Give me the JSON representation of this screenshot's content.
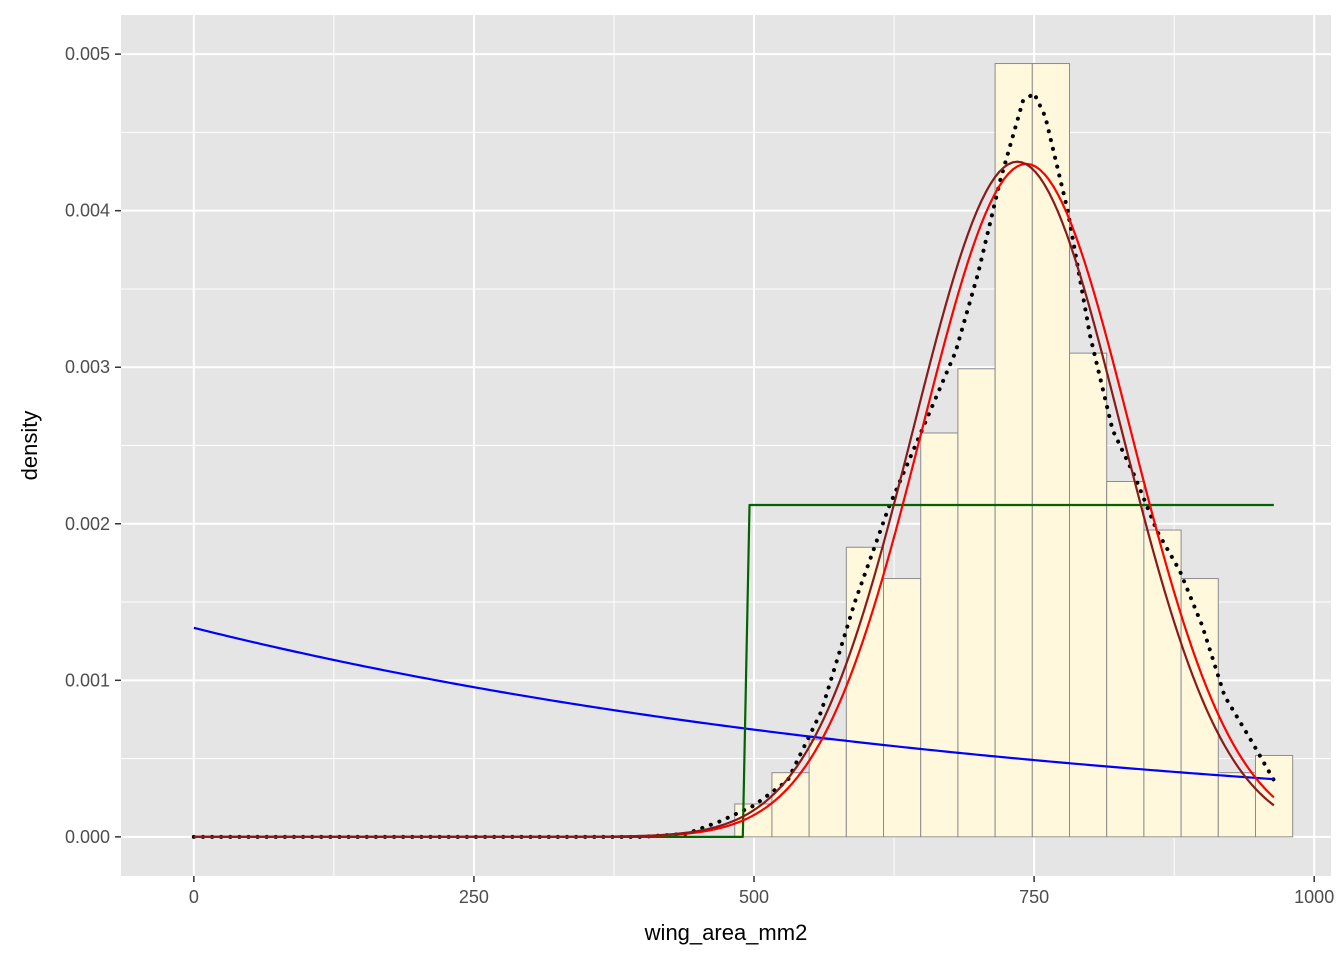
{
  "chart_data": {
    "type": "histogram",
    "title": "",
    "xlabel": "wing_area_mm2",
    "ylabel": "density",
    "xlim": [
      -65,
      1015
    ],
    "ylim": [
      -0.00025,
      0.00525
    ],
    "x_ticks": [
      0,
      250,
      500,
      750,
      1000
    ],
    "x_tick_labels": [
      "0",
      "250",
      "500",
      "750",
      "1000"
    ],
    "y_ticks": [
      0,
      0.001,
      0.002,
      0.003,
      0.004,
      0.005
    ],
    "y_tick_labels": [
      "0.000",
      "0.001",
      "0.002",
      "0.003",
      "0.004",
      "0.005"
    ],
    "grid": true,
    "legend": "none",
    "colors": {
      "panel": "#e5e5e5",
      "grid": "#ffffff",
      "bar_fill": "#fff8dc",
      "bar_stroke": "#8c8c8c",
      "density_line": "#000000",
      "exponential_line": "#0000ff",
      "uniform_line": "#006400",
      "normal_line": "#ff0000",
      "normal_line_2": "#8b1a1a"
    },
    "histogram": {
      "bin_width": 33.2,
      "bins": [
        {
          "x0": -15,
          "x1": 18.2,
          "density": 0
        },
        {
          "x0": 482.8,
          "x1": 516,
          "density": 0.00021
        },
        {
          "x0": 516,
          "x1": 549.2,
          "density": 0.00041
        },
        {
          "x0": 549.2,
          "x1": 582.4,
          "density": 0.00062
        },
        {
          "x0": 582.4,
          "x1": 615.6,
          "density": 0.00185
        },
        {
          "x0": 615.6,
          "x1": 648.8,
          "density": 0.00165
        },
        {
          "x0": 648.8,
          "x1": 682,
          "density": 0.00258
        },
        {
          "x0": 682,
          "x1": 715.2,
          "density": 0.00299
        },
        {
          "x0": 715.2,
          "x1": 748.4,
          "density": 0.00494
        },
        {
          "x0": 748.4,
          "x1": 781.6,
          "density": 0.00494
        },
        {
          "x0": 781.6,
          "x1": 814.8,
          "density": 0.00309
        },
        {
          "x0": 814.8,
          "x1": 848,
          "density": 0.00227
        },
        {
          "x0": 848,
          "x1": 881.2,
          "density": 0.00196
        },
        {
          "x0": 881.2,
          "x1": 914.4,
          "density": 0.00165
        },
        {
          "x0": 914.4,
          "x1": 947.6,
          "density": 0.00041
        },
        {
          "x0": 947.6,
          "x1": 980.8,
          "density": 0.00052
        }
      ]
    },
    "curves": [
      {
        "kind": "kde",
        "style": "dotted",
        "color": "#000000",
        "points": [
          [
            0,
            0
          ],
          [
            400,
            0
          ],
          [
            440,
            2e-05
          ],
          [
            470,
            0.0001
          ],
          [
            500,
            0.0002
          ],
          [
            530,
            0.00036
          ],
          [
            560,
            0.0008
          ],
          [
            590,
            0.0015
          ],
          [
            620,
            0.0021
          ],
          [
            650,
            0.0026
          ],
          [
            680,
            0.0031
          ],
          [
            700,
            0.0036
          ],
          [
            720,
            0.0042
          ],
          [
            740,
            0.0047
          ],
          [
            750,
            0.00475
          ],
          [
            760,
            0.0046
          ],
          [
            780,
            0.004
          ],
          [
            800,
            0.0032
          ],
          [
            820,
            0.0026
          ],
          [
            840,
            0.0023
          ],
          [
            860,
            0.00195
          ],
          [
            880,
            0.0017
          ],
          [
            900,
            0.00135
          ],
          [
            920,
            0.0009
          ],
          [
            945,
            0.0006
          ],
          [
            965,
            0.00035
          ]
        ]
      },
      {
        "kind": "exponential",
        "style": "solid",
        "color": "#0000ff",
        "rate": 0.001335,
        "x_range": [
          0,
          964
        ]
      },
      {
        "kind": "uniform",
        "style": "solid",
        "color": "#006400",
        "min": 493,
        "max": 964,
        "density": 0.00212,
        "x_range": [
          0,
          964
        ]
      },
      {
        "kind": "normal",
        "style": "solid",
        "color": "#ff0000",
        "mean": 743,
        "sd": 92.8,
        "x_range": [
          0,
          964
        ]
      },
      {
        "kind": "normal",
        "style": "solid",
        "color": "#8b1a1a",
        "mean": 735,
        "sd": 92.5,
        "x_range": [
          0,
          964
        ]
      }
    ]
  }
}
